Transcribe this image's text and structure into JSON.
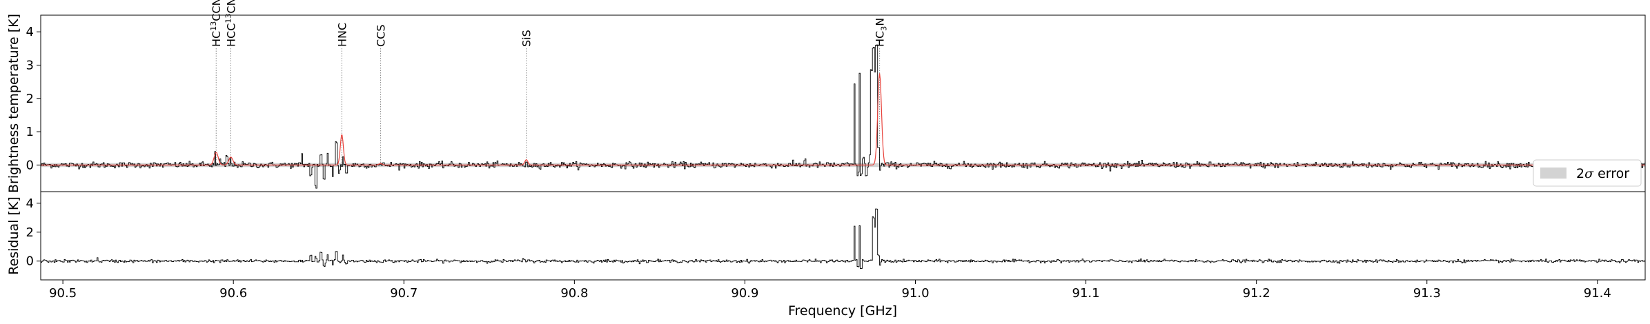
{
  "chart_data": [
    {
      "panel": "spectrum",
      "type": "line",
      "ylabel": "Brightness temperature [K]",
      "xlabel": "",
      "xlim": [
        90.487,
        91.428
      ],
      "ylim": [
        -0.8,
        4.5
      ],
      "yticks": [
        "0",
        "1",
        "2",
        "3",
        "4"
      ],
      "ytick_values": [
        0,
        1,
        2,
        3,
        4
      ],
      "grid": false,
      "error_band": {
        "label": "2σ error",
        "label_prefix": "2",
        "label_sigma": "σ",
        "label_suffix": " error",
        "halfwidth_K": 0.06,
        "color": "#d3d3d3"
      },
      "legend_location": "lower right",
      "series": [
        {
          "role": "observed",
          "color": "#000000",
          "step": true,
          "baseline_rms": 0.05,
          "x": [
            90.487,
            90.52,
            90.585,
            90.589,
            90.592,
            90.596,
            90.598,
            90.6,
            90.64,
            90.645,
            90.648,
            90.651,
            90.653,
            90.655,
            90.658,
            90.66,
            90.662,
            90.664,
            90.666,
            90.69,
            90.767,
            90.769,
            90.771,
            90.93,
            90.935,
            90.962,
            90.964,
            90.966,
            90.967,
            90.968,
            90.969,
            90.971,
            90.973,
            90.974,
            90.975,
            90.976,
            90.977,
            90.978,
            90.979,
            90.98,
            91.0,
            91.428
          ],
          "y": [
            0,
            0.1,
            0.1,
            0.35,
            0.15,
            0.25,
            0.2,
            0.05,
            0.3,
            -0.3,
            -0.65,
            0.25,
            -0.45,
            0.4,
            -0.3,
            0.65,
            -0.2,
            0.3,
            -0.25,
            0.05,
            0.1,
            0.1,
            0.05,
            0.1,
            0.15,
            -0.1,
            2.4,
            -0.3,
            2.8,
            -0.25,
            0.2,
            -0.35,
            0.3,
            2.9,
            3.5,
            2.8,
            3.6,
            0.5,
            -0.2,
            0.1,
            0.03,
            0.0
          ]
        },
        {
          "role": "model",
          "color": "#e8423b",
          "peaks": [
            {
              "center": 90.5899,
              "amp": 0.38,
              "sigma": 0.0012
            },
            {
              "center": 90.5985,
              "amp": 0.24,
              "sigma": 0.0012
            },
            {
              "center": 90.6636,
              "amp": 0.92,
              "sigma": 0.0009
            },
            {
              "center": 90.6863,
              "amp": 0.04,
              "sigma": 0.001
            },
            {
              "center": 90.7718,
              "amp": 0.16,
              "sigma": 0.0009
            },
            {
              "center": 90.979,
              "amp": 2.75,
              "sigma": 0.0011
            }
          ]
        }
      ],
      "line_markers": [
        {
          "x": 90.5899,
          "label": "HC",
          "sup": "13",
          "tail": "CCN"
        },
        {
          "x": 90.5985,
          "label": "HCC",
          "sup": "13",
          "tail": "CN"
        },
        {
          "x": 90.6636,
          "label": "HNC",
          "sup": "",
          "tail": ""
        },
        {
          "x": 90.6863,
          "label": "CCS",
          "sup": "",
          "tail": ""
        },
        {
          "x": 90.7718,
          "label": "SiS",
          "sup": "",
          "tail": ""
        },
        {
          "x": 90.979,
          "label": "HC",
          "sup": "3",
          "tail": "N",
          "sub": true
        }
      ]
    },
    {
      "panel": "residual",
      "type": "line",
      "ylabel": "Residual [K]",
      "xlabel": "Frequency [GHz]",
      "xlim": [
        90.487,
        91.428
      ],
      "ylim": [
        -1.3,
        4.8
      ],
      "yticks": [
        "0",
        "2",
        "4"
      ],
      "ytick_values": [
        0,
        2,
        4
      ],
      "xticks": [
        "90.5",
        "90.6",
        "90.7",
        "90.8",
        "90.9",
        "91.0",
        "91.1",
        "91.2",
        "91.3",
        "91.4"
      ],
      "xtick_values": [
        90.5,
        90.6,
        90.7,
        90.8,
        90.9,
        91.0,
        91.1,
        91.2,
        91.3,
        91.4
      ],
      "grid": false,
      "series": [
        {
          "role": "residual",
          "color": "#000000",
          "step": true,
          "x": [
            90.487,
            90.52,
            90.589,
            90.598,
            90.645,
            90.648,
            90.651,
            90.653,
            90.655,
            90.658,
            90.66,
            90.662,
            90.664,
            90.666,
            90.77,
            90.964,
            90.966,
            90.967,
            90.968,
            90.969,
            90.975,
            90.976,
            90.977,
            90.978,
            90.979,
            91.428
          ],
          "y": [
            0,
            0.15,
            0.05,
            0.05,
            0.45,
            0.3,
            0.6,
            -0.4,
            0.5,
            -0.3,
            0.7,
            0.1,
            0.4,
            -0.2,
            0.15,
            2.4,
            -0.3,
            2.5,
            -0.5,
            0.1,
            3.0,
            2.4,
            3.6,
            0.4,
            -0.3,
            0
          ]
        }
      ]
    }
  ]
}
